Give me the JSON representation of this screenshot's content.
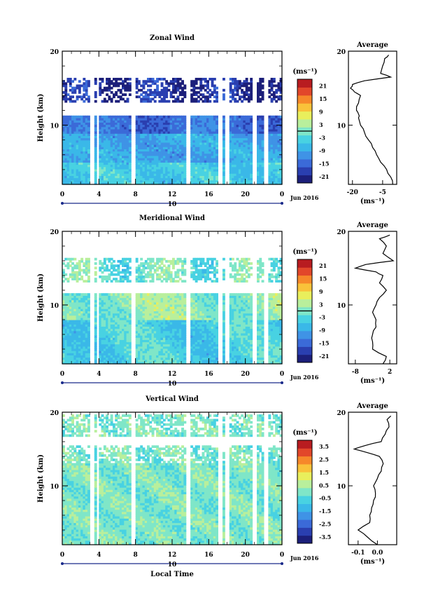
{
  "chart_data": [
    {
      "type": "heatmap",
      "title": "Zonal Wind",
      "ylabel": "Height (km)",
      "ylim": [
        2,
        20
      ],
      "yticks": [
        "10",
        "20"
      ],
      "xticks": [
        "0",
        "4",
        "8",
        "12",
        "16",
        "20",
        "0"
      ],
      "xlim": [
        0,
        24
      ],
      "date_marker": "10",
      "date_label": "Jun 2016",
      "colorbar": {
        "unit": "(ms⁻¹)",
        "ticks": [
          "21",
          "15",
          "9",
          "3",
          "-3",
          "-9",
          "-15",
          "-21"
        ],
        "range": [
          -24,
          24
        ],
        "contour_level": 0
      },
      "profile": {
        "title": "Average",
        "xlabel": "(ms⁻¹)",
        "xticks": [
          "-20",
          "-5"
        ],
        "xlim": [
          -22,
          2
        ],
        "heights": [
          2,
          3,
          4,
          5,
          6,
          7,
          8,
          9,
          10,
          11,
          11.5,
          12,
          13,
          14,
          14.5,
          15,
          15.5,
          16,
          16.5,
          17,
          18,
          19,
          19.5
        ],
        "values": [
          0,
          -1,
          -3,
          -6,
          -8,
          -10,
          -12,
          -14,
          -16,
          -17,
          -17,
          -18,
          -17,
          -16,
          -19,
          -21,
          -20,
          -14,
          -1,
          -6,
          -5,
          -4,
          -2
        ]
      }
    },
    {
      "type": "heatmap",
      "title": "Meridional Wind",
      "ylabel": "Height (km)",
      "ylim": [
        2,
        20
      ],
      "yticks": [
        "10",
        "20"
      ],
      "xticks": [
        "0",
        "4",
        "8",
        "12",
        "16",
        "20",
        "0"
      ],
      "xlim": [
        0,
        24
      ],
      "date_marker": "10",
      "date_label": "Jun 2016",
      "colorbar": {
        "unit": "(ms⁻¹)",
        "ticks": [
          "21",
          "15",
          "9",
          "3",
          "-3",
          "-9",
          "-15",
          "-21"
        ],
        "range": [
          -24,
          24
        ],
        "contour_level": 0
      },
      "profile": {
        "title": "Average",
        "xlabel": "(ms⁻¹)",
        "xticks": [
          "-8",
          "2"
        ],
        "xlim": [
          -10,
          4
        ],
        "heights": [
          2,
          3,
          4,
          5,
          6,
          7,
          8,
          9,
          10,
          11,
          12,
          13,
          14,
          14.5,
          15,
          15.5,
          16,
          17,
          18,
          19,
          19.5
        ],
        "values": [
          0,
          1,
          -3,
          -3,
          -3,
          -2,
          -2,
          -3,
          -2,
          -1,
          1,
          -1,
          0,
          -2,
          -8,
          -5,
          3,
          0,
          1,
          -1,
          2
        ]
      }
    },
    {
      "type": "heatmap",
      "title": "Vertical Wind",
      "ylabel": "Height (km)",
      "xlabel": "Local Time",
      "ylim": [
        2,
        20
      ],
      "yticks": [
        "10",
        "20"
      ],
      "xticks": [
        "0",
        "4",
        "8",
        "12",
        "16",
        "20",
        "0"
      ],
      "xlim": [
        0,
        24
      ],
      "date_marker": "10",
      "date_label": "Jun 2016",
      "colorbar": {
        "unit": "(ms⁻¹)",
        "ticks": [
          "3.5",
          "2.5",
          "1.5",
          "0.5",
          "-0.5",
          "-1.5",
          "-2.5",
          "-3.5"
        ],
        "range": [
          -4,
          4
        ]
      },
      "profile": {
        "title": "Average",
        "xlabel": "(ms⁻¹)",
        "xticks": [
          "-0.1",
          "0.0"
        ],
        "xlim": [
          -0.15,
          0.1
        ],
        "heights": [
          2,
          3,
          4,
          5,
          6,
          7,
          8,
          9,
          10,
          11,
          12,
          13,
          14,
          14.5,
          15,
          15.5,
          16,
          17,
          18,
          19,
          19.5
        ],
        "values": [
          0.0,
          -0.05,
          -0.1,
          -0.04,
          -0.04,
          -0.03,
          -0.02,
          -0.01,
          -0.02,
          0.0,
          0.02,
          0.03,
          0.01,
          -0.05,
          -0.12,
          -0.06,
          0.02,
          0.04,
          0.06,
          0.05,
          0.07
        ]
      }
    }
  ]
}
